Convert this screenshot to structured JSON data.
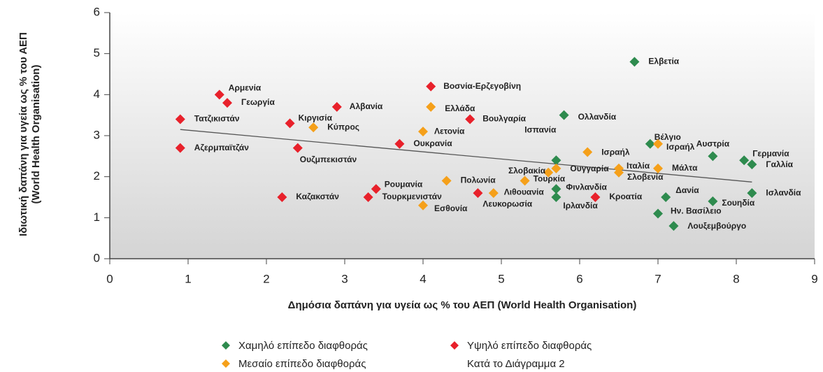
{
  "chart_data": {
    "type": "scatter",
    "xlabel": "Δημόσια δαπάνη για υγεία ως % του ΑΕΠ (World Health Organisation)",
    "ylabel": [
      "Ιδιωτική δαπάνη για υγεία ως % του ΑΕΠ",
      "(World Health Organisation)"
    ],
    "xlim": [
      0,
      9
    ],
    "xticks": [
      0,
      1,
      2,
      3,
      4,
      5,
      6,
      7,
      8,
      9
    ],
    "ylim": [
      0,
      6
    ],
    "yticks": [
      0,
      1,
      2,
      3,
      4,
      5,
      6
    ],
    "trendline": {
      "x": [
        0.9,
        8.2
      ],
      "y": [
        3.15,
        1.87
      ],
      "color": "#555555"
    },
    "legend_note": "Κατά το Διάγραμμα 2",
    "series": [
      {
        "name": "Χαμηλό επίπεδο διαφθοράς",
        "color": "#2e8b4e",
        "labels": [
          "Ελβετία",
          "Ολλανδία",
          "Ισπανία",
          "Βέλγιο",
          "Αυστρία",
          "Γερμανία",
          "Γαλλία",
          "Φινλανδία",
          "Ιρλανδία",
          "Δανία",
          "Σουηδία",
          "Ισλανδία",
          "Ην. Βασίλειο",
          "Λουξεμβούργο"
        ],
        "x": [
          6.7,
          5.8,
          5.7,
          6.9,
          7.7,
          8.1,
          8.2,
          5.7,
          5.7,
          7.1,
          7.7,
          8.2,
          7.0,
          7.2
        ],
        "values": [
          4.8,
          3.5,
          2.4,
          2.8,
          2.5,
          2.4,
          2.3,
          1.7,
          1.5,
          1.5,
          1.4,
          1.6,
          1.1,
          0.8
        ]
      },
      {
        "name": "Υψηλό επίπεδο διαφθοράς",
        "color": "#e8212b",
        "labels": [
          "Αρμενία",
          "Γεωργία",
          "Τατζικιστάν",
          "Αζερμπαϊτζάν",
          "Κιργισία",
          "Ουζμπεκιστάν",
          "Αλβανία",
          "Βοσνία-Ερζεγοβίνη",
          "Βουλγαρία",
          "Ουκρανία",
          "Ρουμανία",
          "Τουρκμενιστάν",
          "Καζακστάν",
          "Λευκορωσία",
          "Κροατία"
        ],
        "x": [
          1.4,
          1.5,
          0.9,
          0.9,
          2.3,
          2.4,
          2.9,
          4.1,
          4.6,
          3.7,
          3.4,
          3.3,
          2.2,
          4.7,
          6.2
        ],
        "values": [
          4.0,
          3.8,
          3.4,
          2.7,
          3.3,
          2.7,
          3.7,
          4.2,
          3.4,
          2.8,
          1.7,
          1.5,
          1.5,
          1.6,
          1.5
        ]
      },
      {
        "name": "Μεσαίο επίπεδο διαφθοράς",
        "color": "#f5a01a",
        "labels": [
          "Κύπρος",
          "Ελλάδα",
          "Λετονία",
          "Πολωνία",
          "Λιθουανία",
          "Εσθονία",
          "Τουρκία",
          "Σλοβακία",
          "Ουγγαρία",
          "Ισραήλ",
          "Ιταλία",
          "Σλοβενία",
          "Μάλτα",
          "Ισραήλ"
        ],
        "x": [
          2.6,
          4.1,
          4.0,
          4.3,
          4.9,
          4.0,
          5.3,
          5.6,
          5.7,
          6.1,
          6.5,
          6.5,
          7.0,
          7.0
        ],
        "values": [
          3.2,
          3.7,
          3.1,
          1.9,
          1.6,
          1.3,
          1.9,
          2.1,
          2.2,
          2.6,
          2.2,
          2.1,
          2.2,
          2.8
        ]
      }
    ]
  }
}
